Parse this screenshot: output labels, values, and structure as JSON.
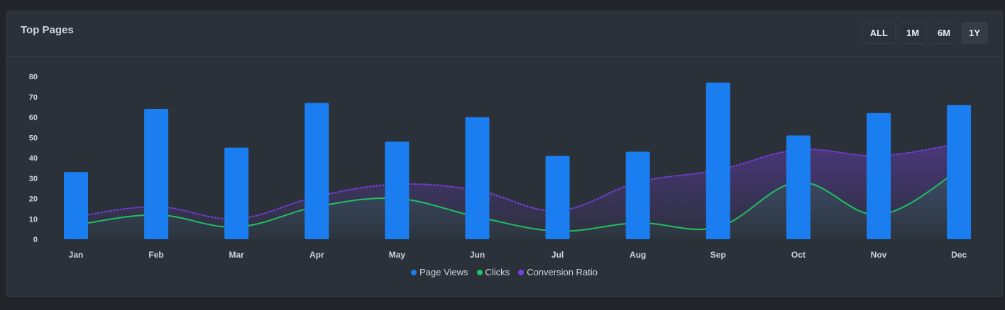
{
  "card": {
    "title": "Top Pages"
  },
  "range_buttons": [
    {
      "label": "ALL",
      "active": false
    },
    {
      "label": "1M",
      "active": false
    },
    {
      "label": "6M",
      "active": false
    },
    {
      "label": "1Y",
      "active": true
    }
  ],
  "colors": {
    "page_views": "#1a7ef0",
    "clicks": "#20bf62",
    "conversion_ratio": "#7a3fe4"
  },
  "chart_data": {
    "type": "bar",
    "categories": [
      "Jan",
      "Feb",
      "Mar",
      "Apr",
      "May",
      "Jun",
      "Jul",
      "Aug",
      "Sep",
      "Oct",
      "Nov",
      "Dec"
    ],
    "ylim": [
      0,
      80
    ],
    "yticks": [
      0,
      10,
      20,
      30,
      40,
      50,
      60,
      70,
      80
    ],
    "series": [
      {
        "name": "Page Views",
        "type": "bar",
        "values": [
          33,
          64,
          45,
          67,
          48,
          60,
          41,
          43,
          77,
          51,
          62,
          66
        ]
      },
      {
        "name": "Clicks",
        "type": "area",
        "values": [
          7,
          12,
          6,
          16,
          20,
          11,
          4,
          8,
          6,
          28,
          12,
          34
        ]
      },
      {
        "name": "Conversion Ratio",
        "type": "area-dotted",
        "values": [
          11,
          16,
          10,
          21,
          27,
          24,
          14,
          28,
          34,
          44,
          41,
          47
        ]
      }
    ],
    "legend_position": "bottom",
    "grid": false
  }
}
